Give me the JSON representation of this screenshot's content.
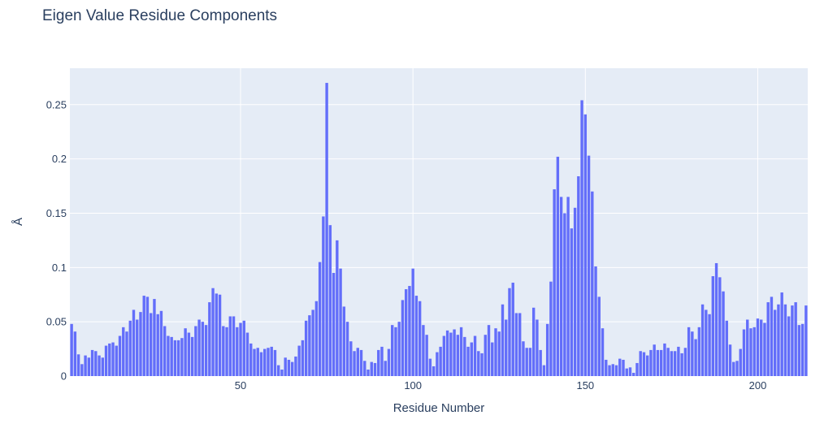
{
  "chart_data": {
    "type": "bar",
    "title": "Eigen Value Residue Components",
    "xlabel": "Residue Number",
    "ylabel": "Å",
    "x_start": 1,
    "xlim": [
      0.5,
      214.5
    ],
    "ylim": [
      0,
      0.2835
    ],
    "xticks": [
      50,
      100,
      150,
      200
    ],
    "yticks": [
      0,
      0.05,
      0.1,
      0.15,
      0.2,
      0.25
    ],
    "ytick_labels": [
      "0",
      "0.05",
      "0.1",
      "0.15",
      "0.2",
      "0.25"
    ],
    "grid": true,
    "bar_color": "#636efa",
    "plot_bg": "#e5ecf6",
    "values": [
      0.048,
      0.041,
      0.02,
      0.011,
      0.019,
      0.017,
      0.024,
      0.023,
      0.019,
      0.017,
      0.028,
      0.03,
      0.031,
      0.028,
      0.037,
      0.045,
      0.041,
      0.051,
      0.061,
      0.052,
      0.059,
      0.074,
      0.073,
      0.058,
      0.071,
      0.057,
      0.06,
      0.046,
      0.037,
      0.036,
      0.033,
      0.033,
      0.035,
      0.044,
      0.04,
      0.036,
      0.046,
      0.052,
      0.05,
      0.047,
      0.068,
      0.081,
      0.076,
      0.075,
      0.046,
      0.045,
      0.055,
      0.055,
      0.045,
      0.049,
      0.051,
      0.04,
      0.03,
      0.025,
      0.026,
      0.022,
      0.025,
      0.026,
      0.027,
      0.024,
      0.01,
      0.006,
      0.017,
      0.015,
      0.013,
      0.018,
      0.028,
      0.033,
      0.051,
      0.056,
      0.061,
      0.069,
      0.105,
      0.147,
      0.27,
      0.139,
      0.095,
      0.125,
      0.099,
      0.064,
      0.05,
      0.032,
      0.023,
      0.026,
      0.024,
      0.014,
      0.006,
      0.013,
      0.012,
      0.024,
      0.027,
      0.014,
      0.025,
      0.047,
      0.045,
      0.05,
      0.07,
      0.08,
      0.083,
      0.099,
      0.074,
      0.069,
      0.047,
      0.038,
      0.016,
      0.009,
      0.022,
      0.027,
      0.037,
      0.042,
      0.04,
      0.043,
      0.038,
      0.045,
      0.036,
      0.027,
      0.031,
      0.037,
      0.023,
      0.021,
      0.038,
      0.047,
      0.031,
      0.044,
      0.041,
      0.066,
      0.052,
      0.081,
      0.086,
      0.058,
      0.058,
      0.032,
      0.026,
      0.026,
      0.063,
      0.052,
      0.024,
      0.01,
      0.048,
      0.087,
      0.172,
      0.202,
      0.165,
      0.15,
      0.165,
      0.136,
      0.155,
      0.184,
      0.254,
      0.241,
      0.203,
      0.17,
      0.101,
      0.073,
      0.044,
      0.015,
      0.01,
      0.011,
      0.01,
      0.016,
      0.015,
      0.007,
      0.008,
      0.003,
      0.012,
      0.023,
      0.022,
      0.019,
      0.024,
      0.029,
      0.024,
      0.024,
      0.03,
      0.026,
      0.023,
      0.023,
      0.027,
      0.021,
      0.026,
      0.045,
      0.041,
      0.034,
      0.045,
      0.066,
      0.061,
      0.057,
      0.092,
      0.104,
      0.091,
      0.078,
      0.051,
      0.029,
      0.013,
      0.014,
      0.025,
      0.043,
      0.052,
      0.044,
      0.045,
      0.053,
      0.052,
      0.049,
      0.068,
      0.073,
      0.061,
      0.066,
      0.077,
      0.066,
      0.055,
      0.065,
      0.068,
      0.047,
      0.048,
      0.065
    ]
  }
}
